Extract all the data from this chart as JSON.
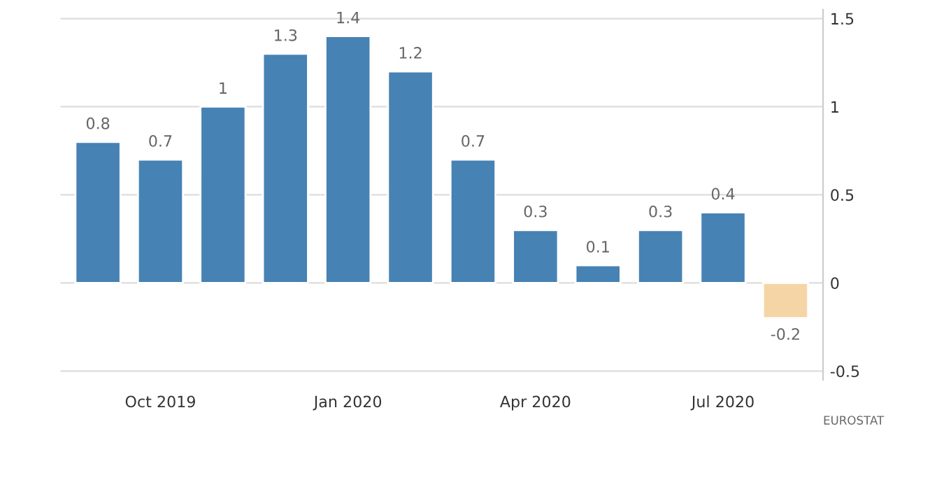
{
  "chart_data": {
    "type": "bar",
    "categories": [
      null,
      "Oct 2019",
      null,
      null,
      "Jan 2020",
      null,
      null,
      "Apr 2020",
      null,
      null,
      "Jul 2020",
      null
    ],
    "values": [
      0.8,
      0.7,
      1,
      1.3,
      1.4,
      1.2,
      0.7,
      0.3,
      0.1,
      0.3,
      0.4,
      -0.2
    ],
    "colors": [
      "#4682b4",
      "#4682b4",
      "#4682b4",
      "#4682b4",
      "#4682b4",
      "#4682b4",
      "#4682b4",
      "#4682b4",
      "#4682b4",
      "#4682b4",
      "#4682b4",
      "#f5d5a5"
    ],
    "ylim": [
      -0.55,
      1.55
    ],
    "yticks": [
      -0.5,
      0,
      0.5,
      1,
      1.5
    ],
    "grid": "y",
    "data_labels": true,
    "annotations": [
      "EUROSTAT"
    ]
  }
}
